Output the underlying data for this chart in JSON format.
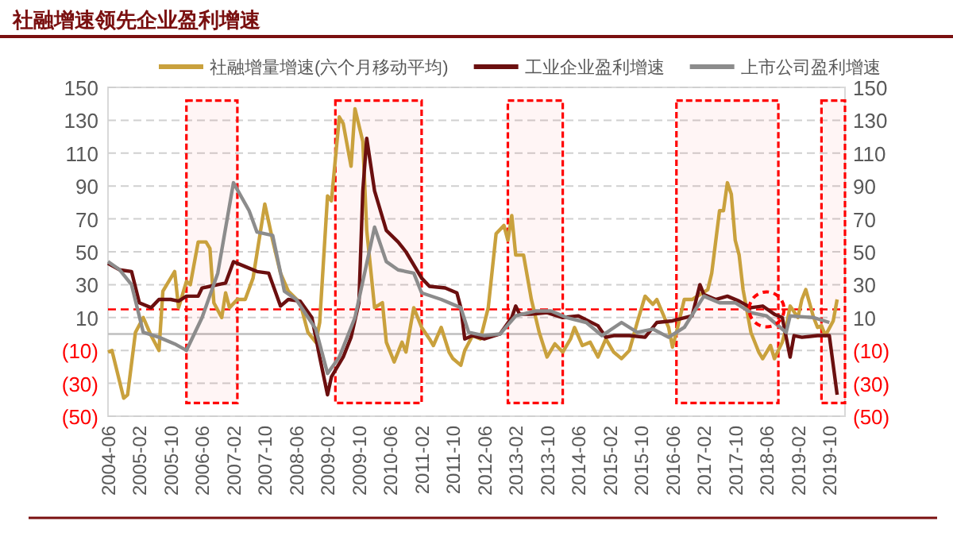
{
  "chart_data": {
    "type": "line",
    "title": "社融增速领先企业盈利增速",
    "xlim": [
      "2004-06",
      "2020-02"
    ],
    "xticks": [
      "2004-06",
      "2005-02",
      "2005-10",
      "2006-06",
      "2007-02",
      "2007-10",
      "2008-06",
      "2009-02",
      "2009-10",
      "2010-06",
      "2011-02",
      "2011-10",
      "2012-06",
      "2013-02",
      "2013-10",
      "2014-06",
      "2015-02",
      "2015-10",
      "2016-06",
      "2017-02",
      "2017-10",
      "2018-06",
      "2019-02",
      "2019-10"
    ],
    "ylim": [
      -50,
      150
    ],
    "yticks": [
      {
        "value": -50,
        "label": "(50)"
      },
      {
        "value": -30,
        "label": "(30)"
      },
      {
        "value": -10,
        "label": "(10)"
      },
      10,
      30,
      50,
      70,
      90,
      110,
      130,
      150
    ],
    "y2lim": [
      -50,
      150
    ],
    "y2ticks": [
      {
        "value": -50,
        "label": "(50)"
      },
      {
        "value": -30,
        "label": "(30)"
      },
      {
        "value": -10,
        "label": "(10)"
      },
      10,
      30,
      50,
      70,
      90,
      110,
      130,
      150
    ],
    "grid": "y",
    "legend": "top",
    "line_style": "solid",
    "marker": "none",
    "ref_lines": [
      {
        "axis": "y",
        "value": 0,
        "color": "#bfbfbf",
        "line_style": "solid"
      },
      {
        "axis": "y",
        "value": 15,
        "color": "#ff0000",
        "line_style": "dashed"
      }
    ],
    "bands": [
      {
        "axis": "x",
        "from": "2006-02",
        "to": "2007-03",
        "color": "#ff0000"
      },
      {
        "axis": "x",
        "from": "2009-04",
        "to": "2011-02",
        "color": "#ff0000"
      },
      {
        "axis": "x",
        "from": "2012-12",
        "to": "2014-02",
        "color": "#ff0000"
      },
      {
        "axis": "x",
        "from": "2016-07",
        "to": "2018-09",
        "color": "#ff0000"
      },
      {
        "axis": "x",
        "from": "2019-08",
        "to": "2020-02",
        "color": "#ff0000"
      }
    ],
    "series": [
      {
        "name": "社融增量增速(六个月移动平均)",
        "color": "#c9a13d",
        "x": [
          "2004-06",
          "2004-07",
          "2004-10",
          "2004-11",
          "2005-01",
          "2005-03",
          "2005-05",
          "2005-07",
          "2005-08",
          "2005-11",
          "2005-12",
          "2006-02",
          "2006-03",
          "2006-05",
          "2006-07",
          "2006-08",
          "2006-09",
          "2006-11",
          "2006-12",
          "2007-01",
          "2007-03",
          "2007-05",
          "2007-07",
          "2007-10",
          "2007-12",
          "2008-02",
          "2008-04",
          "2008-07",
          "2008-09",
          "2008-11",
          "2008-12",
          "2009-02",
          "2009-03",
          "2009-05",
          "2009-06",
          "2009-08",
          "2009-09",
          "2009-11",
          "2009-12",
          "2010-02",
          "2010-04",
          "2010-05",
          "2010-07",
          "2010-09",
          "2010-10",
          "2010-12",
          "2011-02",
          "2011-04",
          "2011-05",
          "2011-07",
          "2011-09",
          "2011-10",
          "2011-12",
          "2012-01",
          "2012-03",
          "2012-05",
          "2012-07",
          "2012-09",
          "2012-11",
          "2012-12",
          "2013-01",
          "2013-02",
          "2013-04",
          "2013-06",
          "2013-08",
          "2013-10",
          "2013-12",
          "2014-02",
          "2014-04",
          "2014-05",
          "2014-07",
          "2014-09",
          "2014-11",
          "2015-01",
          "2015-03",
          "2015-05",
          "2015-07",
          "2015-09",
          "2015-11",
          "2016-01",
          "2016-02",
          "2016-05",
          "2016-06",
          "2016-07",
          "2016-09",
          "2016-11",
          "2017-01",
          "2017-03",
          "2017-04",
          "2017-06",
          "2017-07",
          "2017-08",
          "2017-09",
          "2017-10",
          "2017-11",
          "2017-12",
          "2018-02",
          "2018-04",
          "2018-05",
          "2018-07",
          "2018-08",
          "2018-10",
          "2018-11",
          "2018-12",
          "2019-02",
          "2019-03",
          "2019-04",
          "2019-06",
          "2019-07",
          "2019-08",
          "2019-09",
          "2019-11",
          "2019-12"
        ],
        "values": [
          -11,
          -10,
          -39,
          -37,
          1,
          10,
          -1,
          -10,
          26,
          38,
          16,
          32,
          30,
          56,
          56,
          52,
          19,
          10,
          25,
          16,
          21,
          21,
          34,
          79,
          57,
          37,
          26,
          19,
          1,
          -5,
          7,
          84,
          81,
          132,
          128,
          102,
          137,
          117,
          63,
          16,
          19,
          -5,
          -17,
          -5,
          -11,
          16,
          4,
          -3,
          -7,
          4,
          -11,
          -15,
          -19,
          -10,
          -1,
          -3,
          16,
          61,
          66,
          57,
          72,
          48,
          48,
          21,
          1,
          -14,
          -6,
          -11,
          -3,
          4,
          -7,
          -5,
          -14,
          -3,
          -11,
          -15,
          -10,
          7,
          23,
          18,
          21,
          4,
          -8,
          1,
          21,
          21,
          24,
          27,
          37,
          75,
          75,
          92,
          85,
          57,
          48,
          27,
          1,
          -11,
          -15,
          -7,
          -15,
          -5,
          4,
          17,
          10,
          21,
          27,
          10,
          4,
          5,
          -1,
          8,
          21
        ]
      },
      {
        "name": "工业企业盈利增速",
        "color": "#6b0f0f",
        "x": [
          "2004-06",
          "2004-09",
          "2004-12",
          "2005-02",
          "2005-05",
          "2005-07",
          "2005-10",
          "2005-12",
          "2006-02",
          "2006-05",
          "2006-06",
          "2006-08",
          "2006-10",
          "2006-12",
          "2007-02",
          "2007-05",
          "2007-08",
          "2007-11",
          "2008-02",
          "2008-04",
          "2008-07",
          "2008-10",
          "2008-12",
          "2009-02",
          "2009-03",
          "2009-06",
          "2009-08",
          "2009-10",
          "2009-11",
          "2009-12",
          "2010-02",
          "2010-05",
          "2010-08",
          "2010-10",
          "2011-02",
          "2011-04",
          "2011-08",
          "2011-11",
          "2011-12",
          "2012-01",
          "2012-03",
          "2012-06",
          "2012-10",
          "2013-01",
          "2013-02",
          "2013-03",
          "2013-06",
          "2013-10",
          "2014-02",
          "2014-06",
          "2014-11",
          "2015-01",
          "2015-03",
          "2015-07",
          "2015-11",
          "2016-02",
          "2016-06",
          "2016-11",
          "2017-01",
          "2017-02",
          "2017-05",
          "2017-08",
          "2017-11",
          "2018-02",
          "2018-05",
          "2018-08",
          "2018-10",
          "2018-12",
          "2019-01",
          "2019-03",
          "2019-07",
          "2019-10",
          "2019-12"
        ],
        "values": [
          43,
          39,
          38,
          19,
          16,
          21,
          21,
          20,
          23,
          23,
          28,
          29,
          30,
          31,
          44,
          41,
          38,
          37,
          17,
          21,
          20,
          10,
          -14,
          -37,
          -26,
          -14,
          -2,
          19,
          87,
          119,
          87,
          63,
          56,
          50,
          34,
          29,
          28,
          25,
          16,
          -3,
          -1,
          -3,
          0,
          10,
          17,
          12,
          12,
          13,
          10,
          11,
          5,
          -2,
          -1,
          -1,
          -2,
          7,
          8,
          11,
          30,
          24,
          21,
          23,
          20,
          16,
          17,
          12,
          10,
          -14,
          -1,
          -2,
          -1,
          -1,
          -37
        ]
      },
      {
        "name": "上市公司盈利增速",
        "color": "#8c8c8c",
        "x": [
          "2004-06",
          "2004-09",
          "2004-12",
          "2005-03",
          "2005-07",
          "2005-11",
          "2006-02",
          "2006-06",
          "2006-10",
          "2007-02",
          "2007-06",
          "2007-08",
          "2007-12",
          "2008-03",
          "2008-06",
          "2008-11",
          "2009-02",
          "2009-05",
          "2009-09",
          "2010-02",
          "2010-05",
          "2010-08",
          "2010-12",
          "2011-02",
          "2011-07",
          "2011-12",
          "2012-02",
          "2012-06",
          "2012-10",
          "2013-02",
          "2013-07",
          "2013-11",
          "2014-03",
          "2014-08",
          "2014-12",
          "2015-05",
          "2015-09",
          "2016-01",
          "2016-05",
          "2016-09",
          "2017-02",
          "2017-06",
          "2017-10",
          "2018-02",
          "2018-06",
          "2018-11",
          "2018-12",
          "2019-06",
          "2019-10"
        ],
        "values": [
          44,
          39,
          30,
          1,
          -2,
          -6,
          -10,
          10,
          37,
          92,
          75,
          62,
          60,
          26,
          21,
          3,
          -24,
          -14,
          10,
          65,
          44,
          39,
          37,
          25,
          21,
          16,
          1,
          -1,
          0,
          11,
          14,
          14,
          10,
          7,
          -1,
          7,
          1,
          3,
          -2,
          4,
          23,
          19,
          19,
          13,
          11,
          1,
          11,
          10,
          7
        ]
      }
    ]
  }
}
